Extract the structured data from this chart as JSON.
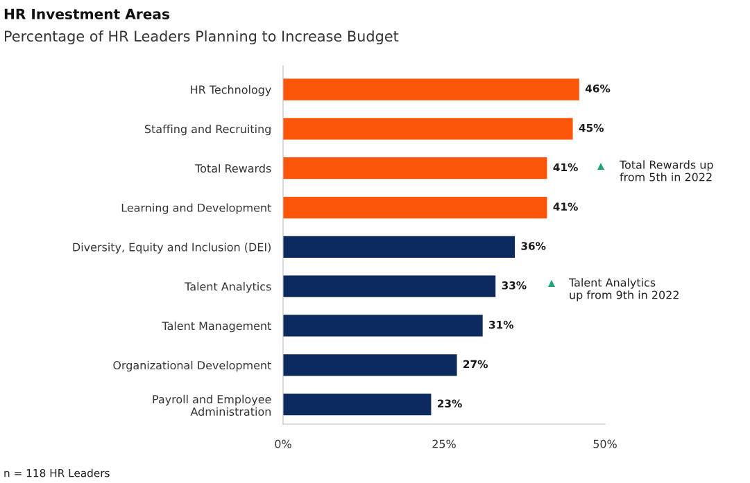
{
  "chart_data": {
    "type": "bar",
    "orientation": "horizontal",
    "title": "HR Investment Areas",
    "subtitle": "Percentage of HR Leaders Planning to Increase Budget",
    "categories": [
      "HR Technology",
      "Staffing and Recruiting",
      "Total Rewards",
      "Learning and Development",
      "Diversity, Equity and Inclusion (DEI)",
      "Talent Analytics",
      "Talent Management",
      "Organizational Development",
      "Payroll and Employee\nAdministration"
    ],
    "values": [
      46,
      45,
      41,
      41,
      36,
      33,
      31,
      27,
      23
    ],
    "colors": [
      "#fc560a",
      "#fc560a",
      "#fc560a",
      "#fc560a",
      "#0c2a5e",
      "#0c2a5e",
      "#0c2a5e",
      "#0c2a5e",
      "#0c2a5e"
    ],
    "value_labels": [
      "46%",
      "45%",
      "41%",
      "41%",
      "36%",
      "33%",
      "31%",
      "27%",
      "23%"
    ],
    "xlim": [
      0,
      50
    ],
    "xticks": [
      {
        "value": 0,
        "label": "0%"
      },
      {
        "value": 25,
        "label": "25%"
      },
      {
        "value": 50,
        "label": "50%"
      }
    ],
    "grid": false,
    "legend": false,
    "annotations": [
      "Total Rewards up\nfrom 5th in 2022",
      "Talent Analytics\nup from 9th in 2022",
      "n = 118 HR Leaders"
    ]
  }
}
